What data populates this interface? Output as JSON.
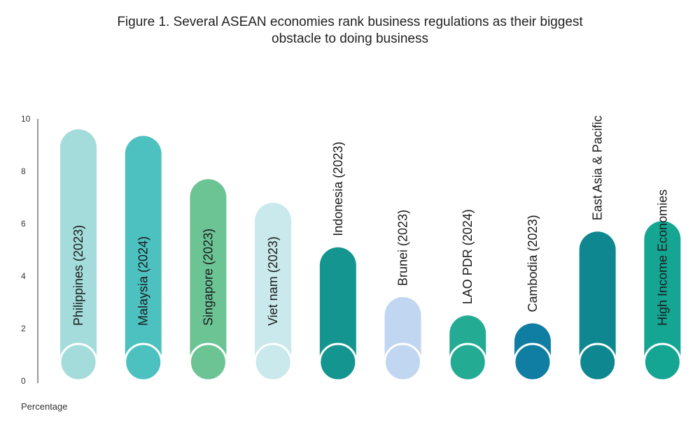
{
  "title_line1": "Figure 1. Several ASEAN economies rank business regulations as their biggest",
  "title_line2": "obstacle to doing business",
  "chart_data": {
    "type": "bar",
    "title": "Figure 1. Several ASEAN economies rank business regulations as their biggest obstacle to doing business",
    "ylabel": "Percentage",
    "xlabel": "",
    "ylim": [
      0,
      10
    ],
    "yticks": [
      0,
      2,
      4,
      6,
      8,
      10
    ],
    "grid": false,
    "categories": [
      "Philippines (2023)",
      "Malaysia (2024)",
      "Singapore (2023)",
      "Viet nam (2023)",
      "Indonesia (2023)",
      "Brunei (2023)",
      "LAO PDR (2024)",
      "Cambodia (2023)",
      "East Asia & Pacific",
      "High Income Economies"
    ],
    "values": [
      9.6,
      9.35,
      7.7,
      6.8,
      5.1,
      3.2,
      2.5,
      2.2,
      5.7,
      6.1
    ],
    "colors": [
      "#a3dcdb",
      "#4cc1bf",
      "#6cc495",
      "#c9e9ec",
      "#149590",
      "#c1d6f0",
      "#24ab93",
      "#0f7ea2",
      "#0f8790",
      "#14a693"
    ]
  }
}
